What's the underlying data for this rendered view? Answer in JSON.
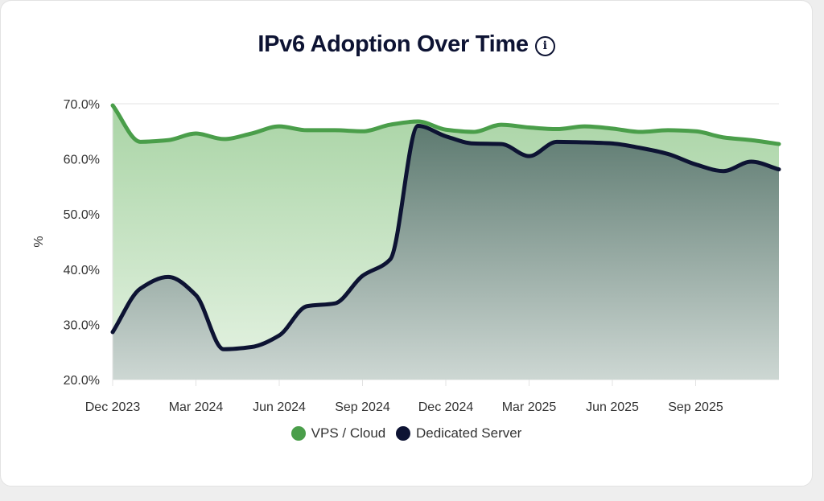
{
  "chart_data": {
    "type": "area",
    "title": "IPv6 Adoption Over Time",
    "title_icon": "info-icon",
    "xlabel": "",
    "ylabel": "%",
    "ylim": [
      20,
      70
    ],
    "y_ticks": [
      "20.0%",
      "30.0%",
      "40.0%",
      "50.0%",
      "60.0%",
      "70.0%"
    ],
    "x_ticks": [
      "Dec 2023",
      "Mar 2024",
      "Jun 2024",
      "Sep 2024",
      "Dec 2024",
      "Mar 2025",
      "Jun 2025",
      "Sep 2025"
    ],
    "grid": true,
    "legend_position": "bottom",
    "x": [
      "2023-12",
      "2024-01",
      "2024-02",
      "2024-03",
      "2024-04",
      "2024-05",
      "2024-06",
      "2024-07",
      "2024-08",
      "2024-09",
      "2024-10",
      "2024-11",
      "2024-12",
      "2025-01",
      "2025-02",
      "2025-03",
      "2025-04",
      "2025-05",
      "2025-06",
      "2025-07",
      "2025-08",
      "2025-09",
      "2025-10",
      "2025-11",
      "2025-12"
    ],
    "series": [
      {
        "name": "VPS / Cloud",
        "color": "#4a9e4a",
        "values": [
          69.7,
          63.1,
          63.4,
          64.6,
          63.6,
          64.6,
          65.9,
          65.2,
          65.2,
          65.0,
          66.2,
          66.8,
          65.3,
          64.9,
          66.2,
          65.7,
          65.4,
          65.9,
          65.5,
          64.9,
          65.2,
          65.0,
          63.9,
          63.4,
          62.7
        ]
      },
      {
        "name": "Dedicated Server",
        "color": "#0d1333",
        "values": [
          28.6,
          36.5,
          38.6,
          35.3,
          25.5,
          25.9,
          28.0,
          33.3,
          33.8,
          38.8,
          41.8,
          66.0,
          64.1,
          62.8,
          62.7,
          60.5,
          63.1,
          63.0,
          62.8,
          62.0,
          60.9,
          59.0,
          57.8,
          59.5,
          58.1
        ]
      }
    ]
  }
}
